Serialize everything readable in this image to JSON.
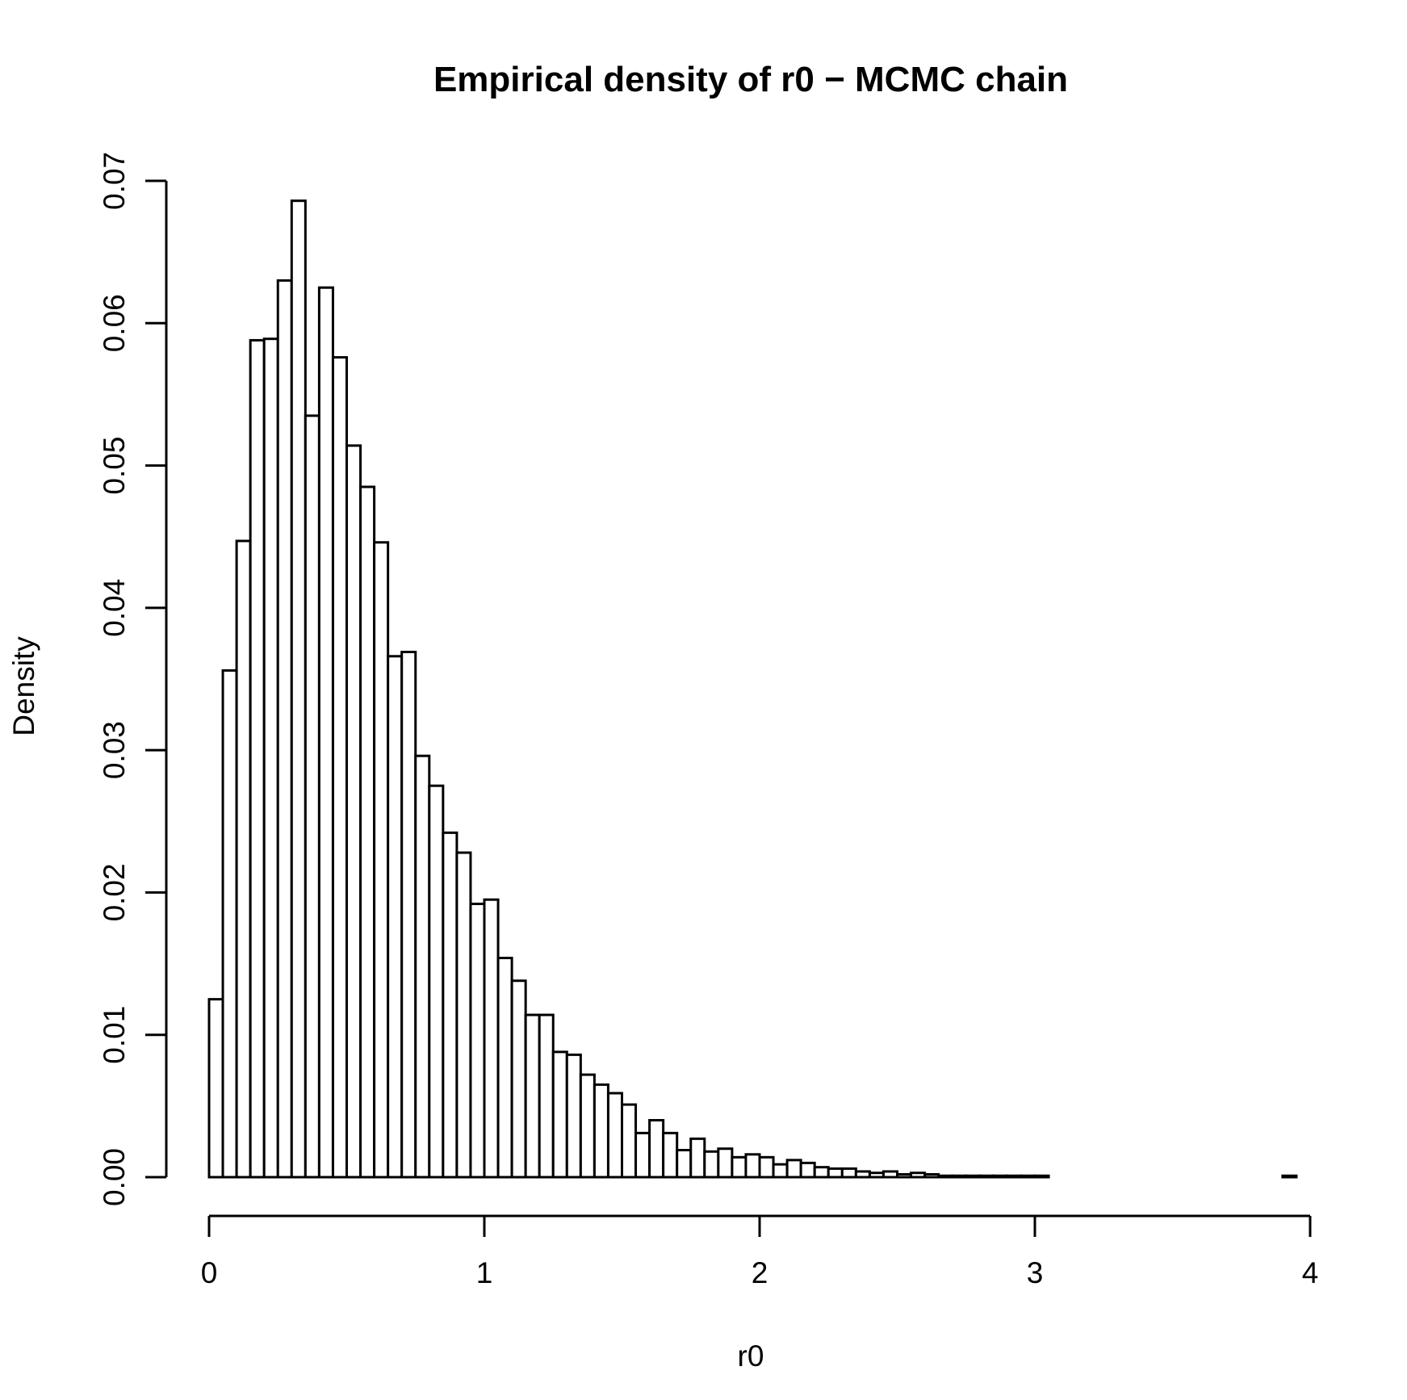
{
  "chart_data": {
    "type": "bar",
    "title": "Empirical density of r0 − MCMC chain",
    "xlabel": "r0",
    "ylabel": "Density",
    "xlim": [
      0,
      4
    ],
    "ylim": [
      0,
      0.07
    ],
    "x_ticks": [
      0,
      1,
      2,
      3,
      4
    ],
    "x_tick_labels": [
      "0",
      "1",
      "2",
      "3",
      "4"
    ],
    "y_ticks": [
      0,
      0.01,
      0.02,
      0.03,
      0.04,
      0.05,
      0.06,
      0.07
    ],
    "y_tick_labels": [
      "0.00",
      "0.01",
      "0.02",
      "0.03",
      "0.04",
      "0.05",
      "0.06",
      "0.07"
    ],
    "bin_width": 0.05,
    "x_start": 0,
    "values": [
      0.0125,
      0.0356,
      0.0447,
      0.0588,
      0.0589,
      0.063,
      0.0686,
      0.0535,
      0.0625,
      0.0576,
      0.0514,
      0.0485,
      0.0446,
      0.0366,
      0.0369,
      0.0296,
      0.0275,
      0.0242,
      0.0228,
      0.0192,
      0.0195,
      0.0154,
      0.0138,
      0.0114,
      0.0114,
      0.0088,
      0.0086,
      0.0072,
      0.0065,
      0.0059,
      0.0051,
      0.0031,
      0.004,
      0.0031,
      0.0019,
      0.0027,
      0.0018,
      0.002,
      0.0014,
      0.0016,
      0.0014,
      0.0009,
      0.0012,
      0.001,
      0.0007,
      0.0006,
      0.0006,
      0.0004,
      0.0003,
      0.0004,
      0.0002,
      0.0003,
      0.0002,
      0.0001,
      0.0001,
      0.0001,
      0.0001,
      0.0001,
      0.0001,
      0.0001,
      0.0001,
      0.0,
      0.0,
      0.0,
      0.0,
      0.0,
      0.0,
      0.0,
      0.0,
      0.0,
      0.0,
      0.0,
      0.0,
      0.0,
      0.0,
      0.0,
      0.0,
      0.0,
      0.0001
    ]
  }
}
